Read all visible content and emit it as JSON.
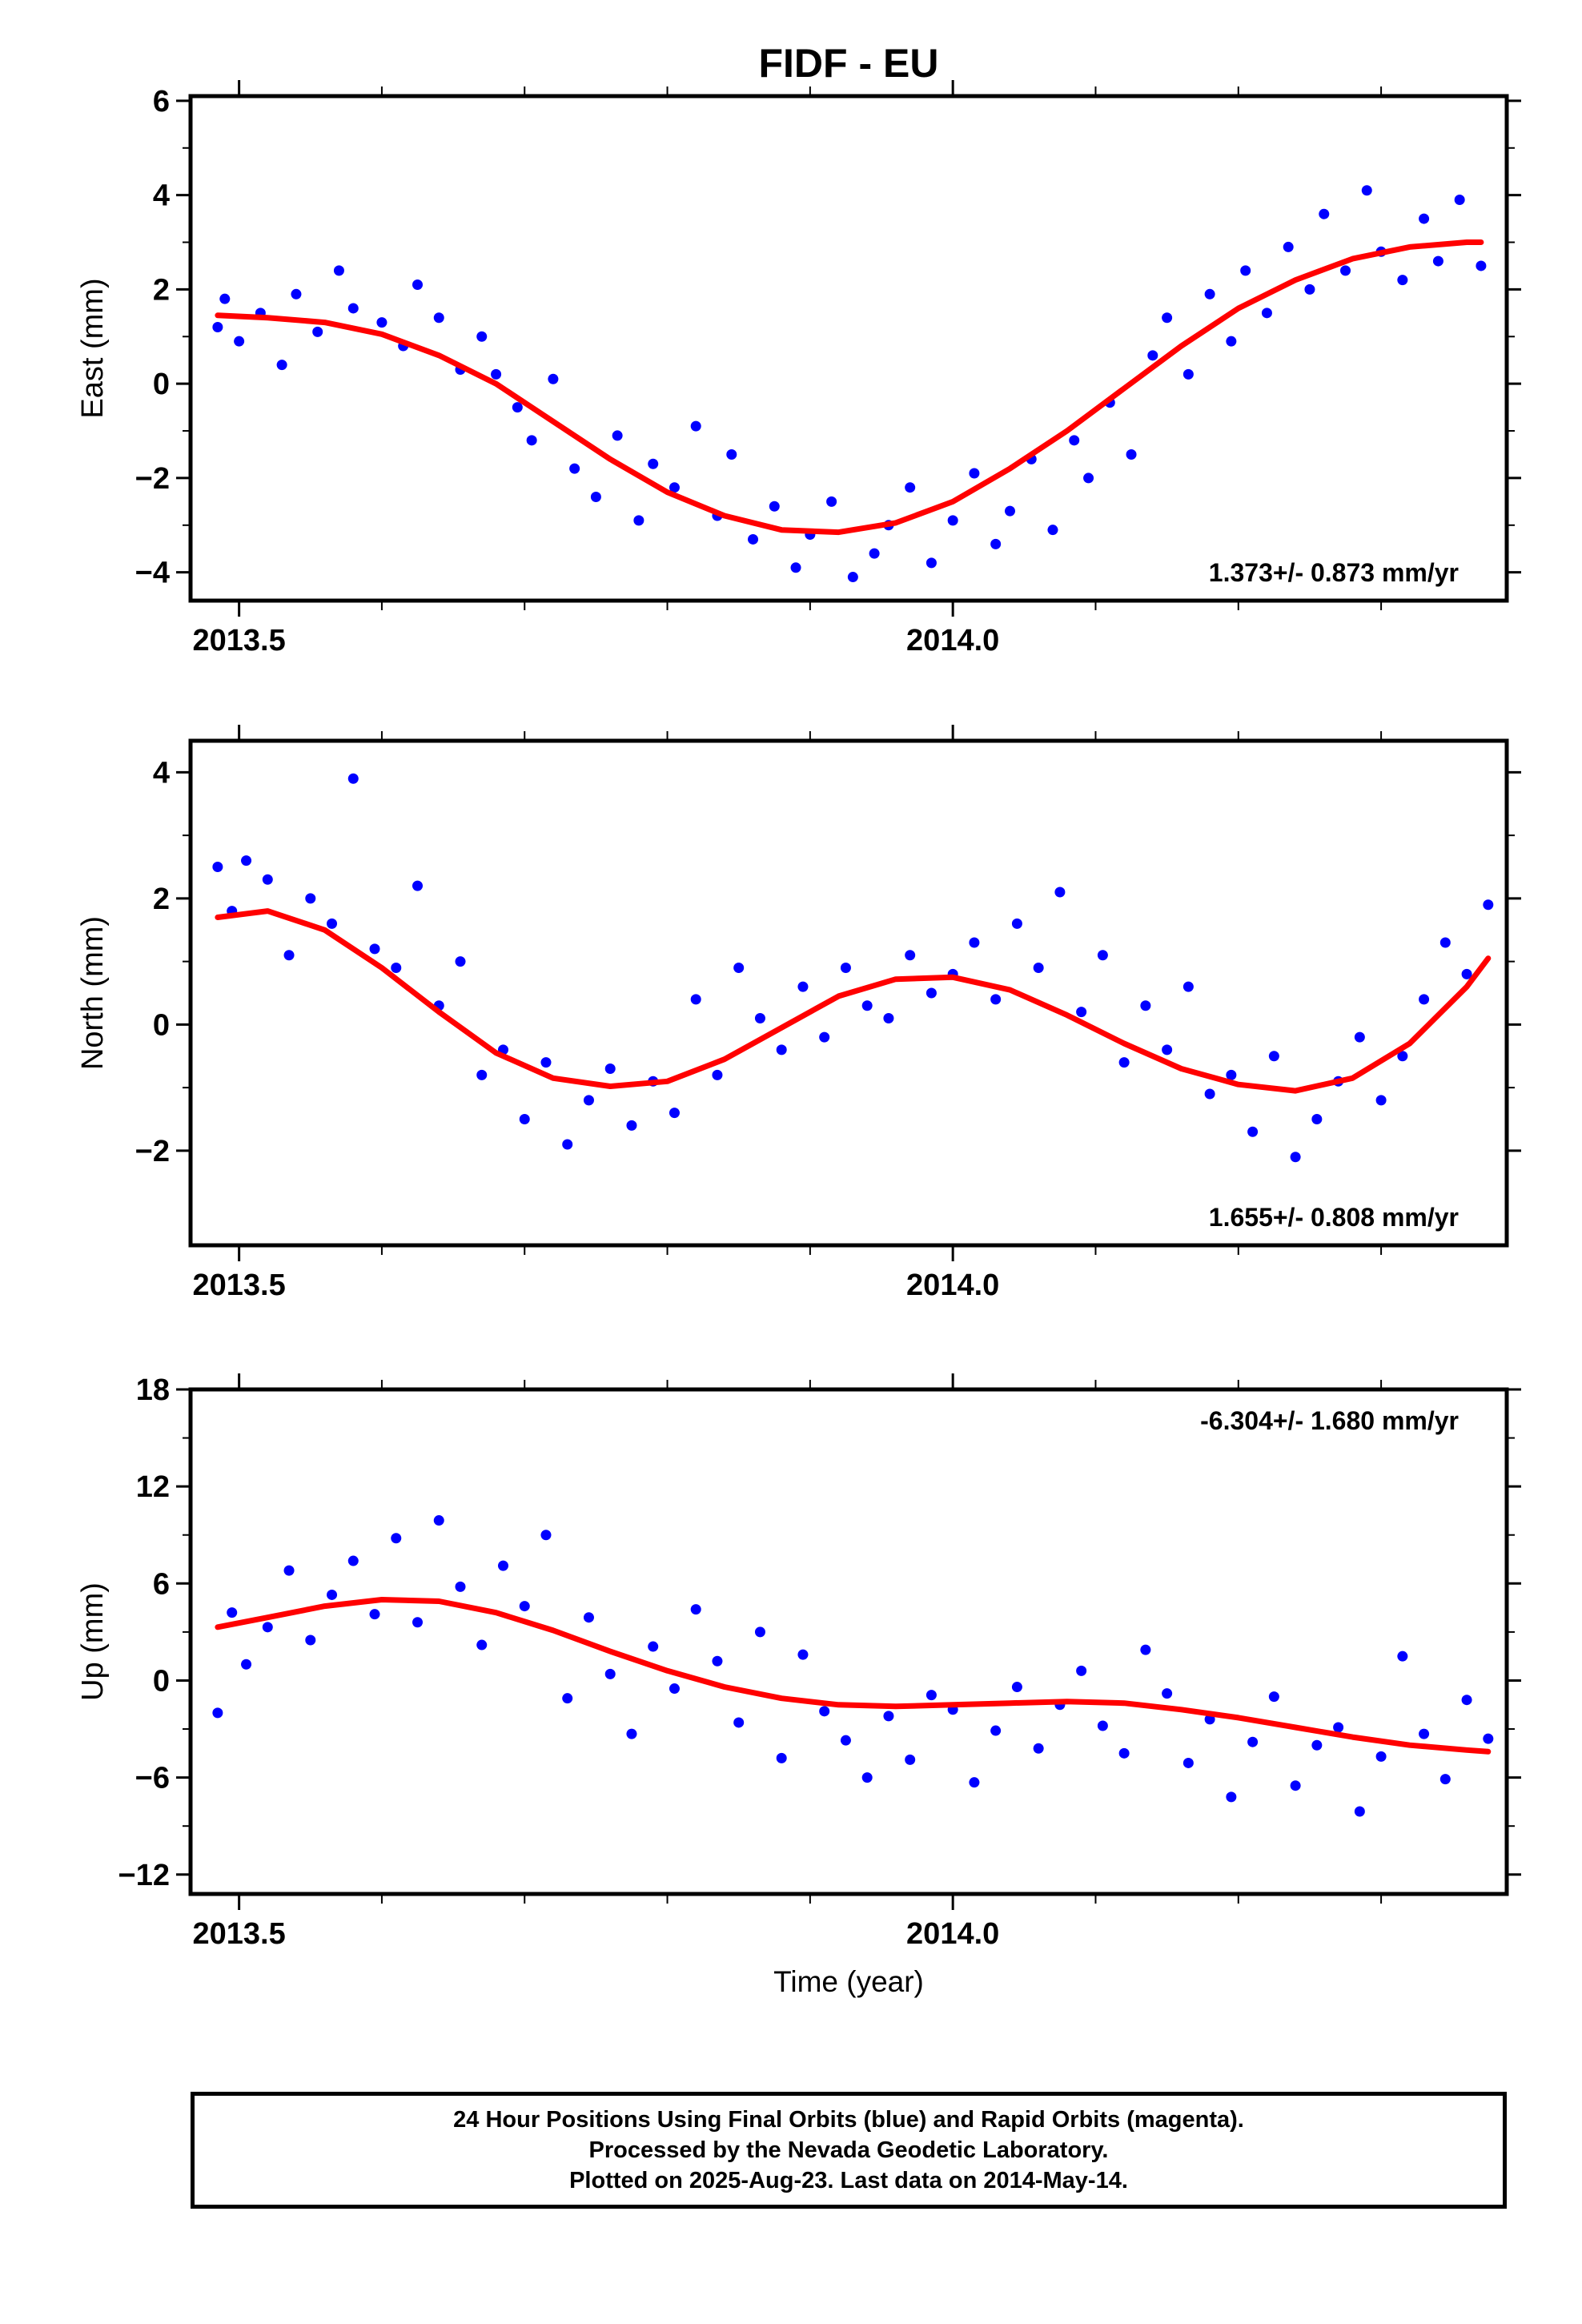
{
  "title": "FIDF - EU",
  "xlabel": "Time (year)",
  "footer": {
    "line1": "24 Hour Positions Using Final Orbits (blue) and Rapid Orbits (magenta).",
    "line2": "Processed by the Nevada Geodetic Laboratory.",
    "line3": "Plotted on 2025-Aug-23. Last data on 2014-May-14."
  },
  "colors": {
    "points": "#0000ff",
    "fit": "#ff0000",
    "frame": "#000000"
  },
  "chart_data": [
    {
      "type": "scatter",
      "ylabel": "East (mm)",
      "rate_label": "1.373+/- 0.873 mm/yr",
      "rate_position": "bottom-right",
      "xlim": [
        2013.466,
        2014.388
      ],
      "ylim": [
        -4.6,
        6.1
      ],
      "xticks": [
        2013.5,
        2014.0
      ],
      "xtick_labels": [
        "2013.5",
        "2014.0"
      ],
      "yticks": [
        -4,
        -2,
        0,
        2,
        4,
        6
      ],
      "ytick_labels": [
        "−4",
        "−2",
        "0",
        "2",
        "4",
        "6"
      ],
      "grid": false,
      "series": [
        {
          "kind": "points",
          "x": [
            2013.485,
            2013.49,
            2013.5,
            2013.515,
            2013.53,
            2013.54,
            2013.555,
            2013.57,
            2013.58,
            2013.6,
            2013.615,
            2013.625,
            2013.64,
            2013.655,
            2013.67,
            2013.68,
            2013.695,
            2013.705,
            2013.72,
            2013.735,
            2013.75,
            2013.765,
            2013.78,
            2013.79,
            2013.805,
            2013.82,
            2013.835,
            2013.845,
            2013.86,
            2013.875,
            2013.89,
            2013.9,
            2013.915,
            2013.93,
            2013.945,
            2013.955,
            2013.97,
            2013.985,
            2014.0,
            2014.015,
            2014.03,
            2014.04,
            2014.055,
            2014.07,
            2014.085,
            2014.095,
            2014.11,
            2014.125,
            2014.14,
            2014.15,
            2014.165,
            2014.18,
            2014.195,
            2014.205,
            2014.22,
            2014.235,
            2014.25,
            2014.26,
            2014.275,
            2014.29,
            2014.3,
            2014.315,
            2014.33,
            2014.34,
            2014.355,
            2014.37
          ],
          "y": [
            1.2,
            1.8,
            0.9,
            1.5,
            0.4,
            1.9,
            1.1,
            2.4,
            1.6,
            1.3,
            0.8,
            2.1,
            1.4,
            0.3,
            1.0,
            0.2,
            -0.5,
            -1.2,
            0.1,
            -1.8,
            -2.4,
            -1.1,
            -2.9,
            -1.7,
            -2.2,
            -0.9,
            -2.8,
            -1.5,
            -3.3,
            -2.6,
            -3.9,
            -3.2,
            -2.5,
            -4.1,
            -3.6,
            -3.0,
            -2.2,
            -3.8,
            -2.9,
            -1.9,
            -3.4,
            -2.7,
            -1.6,
            -3.1,
            -1.2,
            -2.0,
            -0.4,
            -1.5,
            0.6,
            1.4,
            0.2,
            1.9,
            0.9,
            2.4,
            1.5,
            2.9,
            2.0,
            3.6,
            2.4,
            4.1,
            2.8,
            2.2,
            3.5,
            2.6,
            3.9,
            2.5
          ]
        },
        {
          "kind": "fit",
          "x": [
            2013.485,
            2013.52,
            2013.56,
            2013.6,
            2013.64,
            2013.68,
            2013.72,
            2013.76,
            2013.8,
            2013.84,
            2013.88,
            2013.92,
            2013.96,
            2014.0,
            2014.04,
            2014.08,
            2014.12,
            2014.16,
            2014.2,
            2014.24,
            2014.28,
            2014.32,
            2014.36,
            2014.37
          ],
          "y": [
            1.45,
            1.4,
            1.3,
            1.05,
            0.6,
            0.0,
            -0.8,
            -1.6,
            -2.3,
            -2.8,
            -3.1,
            -3.15,
            -2.95,
            -2.5,
            -1.8,
            -1.0,
            -0.1,
            0.8,
            1.6,
            2.2,
            2.65,
            2.9,
            3.0,
            3.0
          ]
        }
      ]
    },
    {
      "type": "scatter",
      "ylabel": "North (mm)",
      "rate_label": "1.655+/- 0.808 mm/yr",
      "rate_position": "bottom-right",
      "xlim": [
        2013.466,
        2014.388
      ],
      "ylim": [
        -3.5,
        4.5
      ],
      "xticks": [
        2013.5,
        2014.0
      ],
      "xtick_labels": [
        "2013.5",
        "2014.0"
      ],
      "yticks": [
        -2,
        0,
        2,
        4
      ],
      "ytick_labels": [
        "−2",
        "0",
        "2",
        "4"
      ],
      "grid": false,
      "series": [
        {
          "kind": "points",
          "x": [
            2013.485,
            2013.495,
            2013.505,
            2013.52,
            2013.535,
            2013.55,
            2013.565,
            2013.58,
            2013.595,
            2013.61,
            2013.625,
            2013.64,
            2013.655,
            2013.67,
            2013.685,
            2013.7,
            2013.715,
            2013.73,
            2013.745,
            2013.76,
            2013.775,
            2013.79,
            2013.805,
            2013.82,
            2013.835,
            2013.85,
            2013.865,
            2013.88,
            2013.895,
            2013.91,
            2013.925,
            2013.94,
            2013.955,
            2013.97,
            2013.985,
            2014.0,
            2014.015,
            2014.03,
            2014.045,
            2014.06,
            2014.075,
            2014.09,
            2014.105,
            2014.12,
            2014.135,
            2014.15,
            2014.165,
            2014.18,
            2014.195,
            2014.21,
            2014.225,
            2014.24,
            2014.255,
            2014.27,
            2014.285,
            2014.3,
            2014.315,
            2014.33,
            2014.345,
            2014.36,
            2014.375
          ],
          "y": [
            2.5,
            1.8,
            2.6,
            2.3,
            1.1,
            2.0,
            1.6,
            3.9,
            1.2,
            0.9,
            2.2,
            0.3,
            1.0,
            -0.8,
            -0.4,
            -1.5,
            -0.6,
            -1.9,
            -1.2,
            -0.7,
            -1.6,
            -0.9,
            -1.4,
            0.4,
            -0.8,
            0.9,
            0.1,
            -0.4,
            0.6,
            -0.2,
            0.9,
            0.3,
            0.1,
            1.1,
            0.5,
            0.8,
            1.3,
            0.4,
            1.6,
            0.9,
            2.1,
            0.2,
            1.1,
            -0.6,
            0.3,
            -0.4,
            0.6,
            -1.1,
            -0.8,
            -1.7,
            -0.5,
            -2.1,
            -1.5,
            -0.9,
            -0.2,
            -1.2,
            -0.5,
            0.4,
            1.3,
            0.8,
            1.9
          ]
        },
        {
          "kind": "fit",
          "x": [
            2013.485,
            2013.52,
            2013.56,
            2013.6,
            2013.64,
            2013.68,
            2013.72,
            2013.76,
            2013.8,
            2013.84,
            2013.88,
            2013.92,
            2013.96,
            2014.0,
            2014.04,
            2014.08,
            2014.12,
            2014.16,
            2014.2,
            2014.24,
            2014.28,
            2014.32,
            2014.36,
            2014.375
          ],
          "y": [
            1.7,
            1.8,
            1.5,
            0.9,
            0.2,
            -0.45,
            -0.85,
            -0.98,
            -0.9,
            -0.55,
            -0.05,
            0.45,
            0.72,
            0.75,
            0.55,
            0.15,
            -0.3,
            -0.7,
            -0.95,
            -1.05,
            -0.85,
            -0.3,
            0.6,
            1.05
          ]
        }
      ]
    },
    {
      "type": "scatter",
      "ylabel": "Up (mm)",
      "rate_label": "-6.304+/- 1.680 mm/yr",
      "rate_position": "top-right",
      "xlim": [
        2013.466,
        2014.388
      ],
      "ylim": [
        -13.2,
        18.0
      ],
      "xticks": [
        2013.5,
        2014.0
      ],
      "xtick_labels": [
        "2013.5",
        "2014.0"
      ],
      "yticks": [
        -12,
        -6,
        0,
        6,
        12,
        18
      ],
      "ytick_labels": [
        "−12",
        "−6",
        "0",
        "6",
        "12",
        "18"
      ],
      "grid": false,
      "series": [
        {
          "kind": "points",
          "x": [
            2013.485,
            2013.495,
            2013.505,
            2013.52,
            2013.535,
            2013.55,
            2013.565,
            2013.58,
            2013.595,
            2013.61,
            2013.625,
            2013.64,
            2013.655,
            2013.67,
            2013.685,
            2013.7,
            2013.715,
            2013.73,
            2013.745,
            2013.76,
            2013.775,
            2013.79,
            2013.805,
            2013.82,
            2013.835,
            2013.85,
            2013.865,
            2013.88,
            2013.895,
            2013.91,
            2013.925,
            2013.94,
            2013.955,
            2013.97,
            2013.985,
            2014.0,
            2014.015,
            2014.03,
            2014.045,
            2014.06,
            2014.075,
            2014.09,
            2014.105,
            2014.12,
            2014.135,
            2014.15,
            2014.165,
            2014.18,
            2014.195,
            2014.21,
            2014.225,
            2014.24,
            2014.255,
            2014.27,
            2014.285,
            2014.3,
            2014.315,
            2014.33,
            2014.345,
            2014.36,
            2014.375
          ],
          "y": [
            -2.0,
            4.2,
            1.0,
            3.3,
            6.8,
            2.5,
            5.3,
            7.4,
            4.1,
            8.8,
            3.6,
            9.9,
            5.8,
            2.2,
            7.1,
            4.6,
            9.0,
            -1.1,
            3.9,
            0.4,
            -3.3,
            2.1,
            -0.5,
            4.4,
            1.2,
            -2.6,
            3.0,
            -4.8,
            1.6,
            -1.9,
            -3.7,
            -6.0,
            -2.2,
            -4.9,
            -0.9,
            -1.8,
            -6.3,
            -3.1,
            -0.4,
            -4.2,
            -1.5,
            0.6,
            -2.8,
            -4.5,
            1.9,
            -0.8,
            -5.1,
            -2.4,
            -7.2,
            -3.8,
            -1.0,
            -6.5,
            -4.0,
            -2.9,
            -8.1,
            -4.7,
            1.5,
            -3.3,
            -6.1,
            -1.2,
            -3.6
          ]
        },
        {
          "kind": "fit",
          "x": [
            2013.485,
            2013.52,
            2013.56,
            2013.6,
            2013.64,
            2013.68,
            2013.72,
            2013.76,
            2013.8,
            2013.84,
            2013.88,
            2013.92,
            2013.96,
            2014.0,
            2014.04,
            2014.08,
            2014.12,
            2014.16,
            2014.2,
            2014.24,
            2014.28,
            2014.32,
            2014.36,
            2014.375
          ],
          "y": [
            3.3,
            3.9,
            4.6,
            5.0,
            4.9,
            4.2,
            3.1,
            1.8,
            0.6,
            -0.4,
            -1.1,
            -1.5,
            -1.6,
            -1.5,
            -1.4,
            -1.3,
            -1.4,
            -1.8,
            -2.3,
            -2.9,
            -3.5,
            -4.0,
            -4.3,
            -4.4
          ]
        }
      ]
    }
  ]
}
